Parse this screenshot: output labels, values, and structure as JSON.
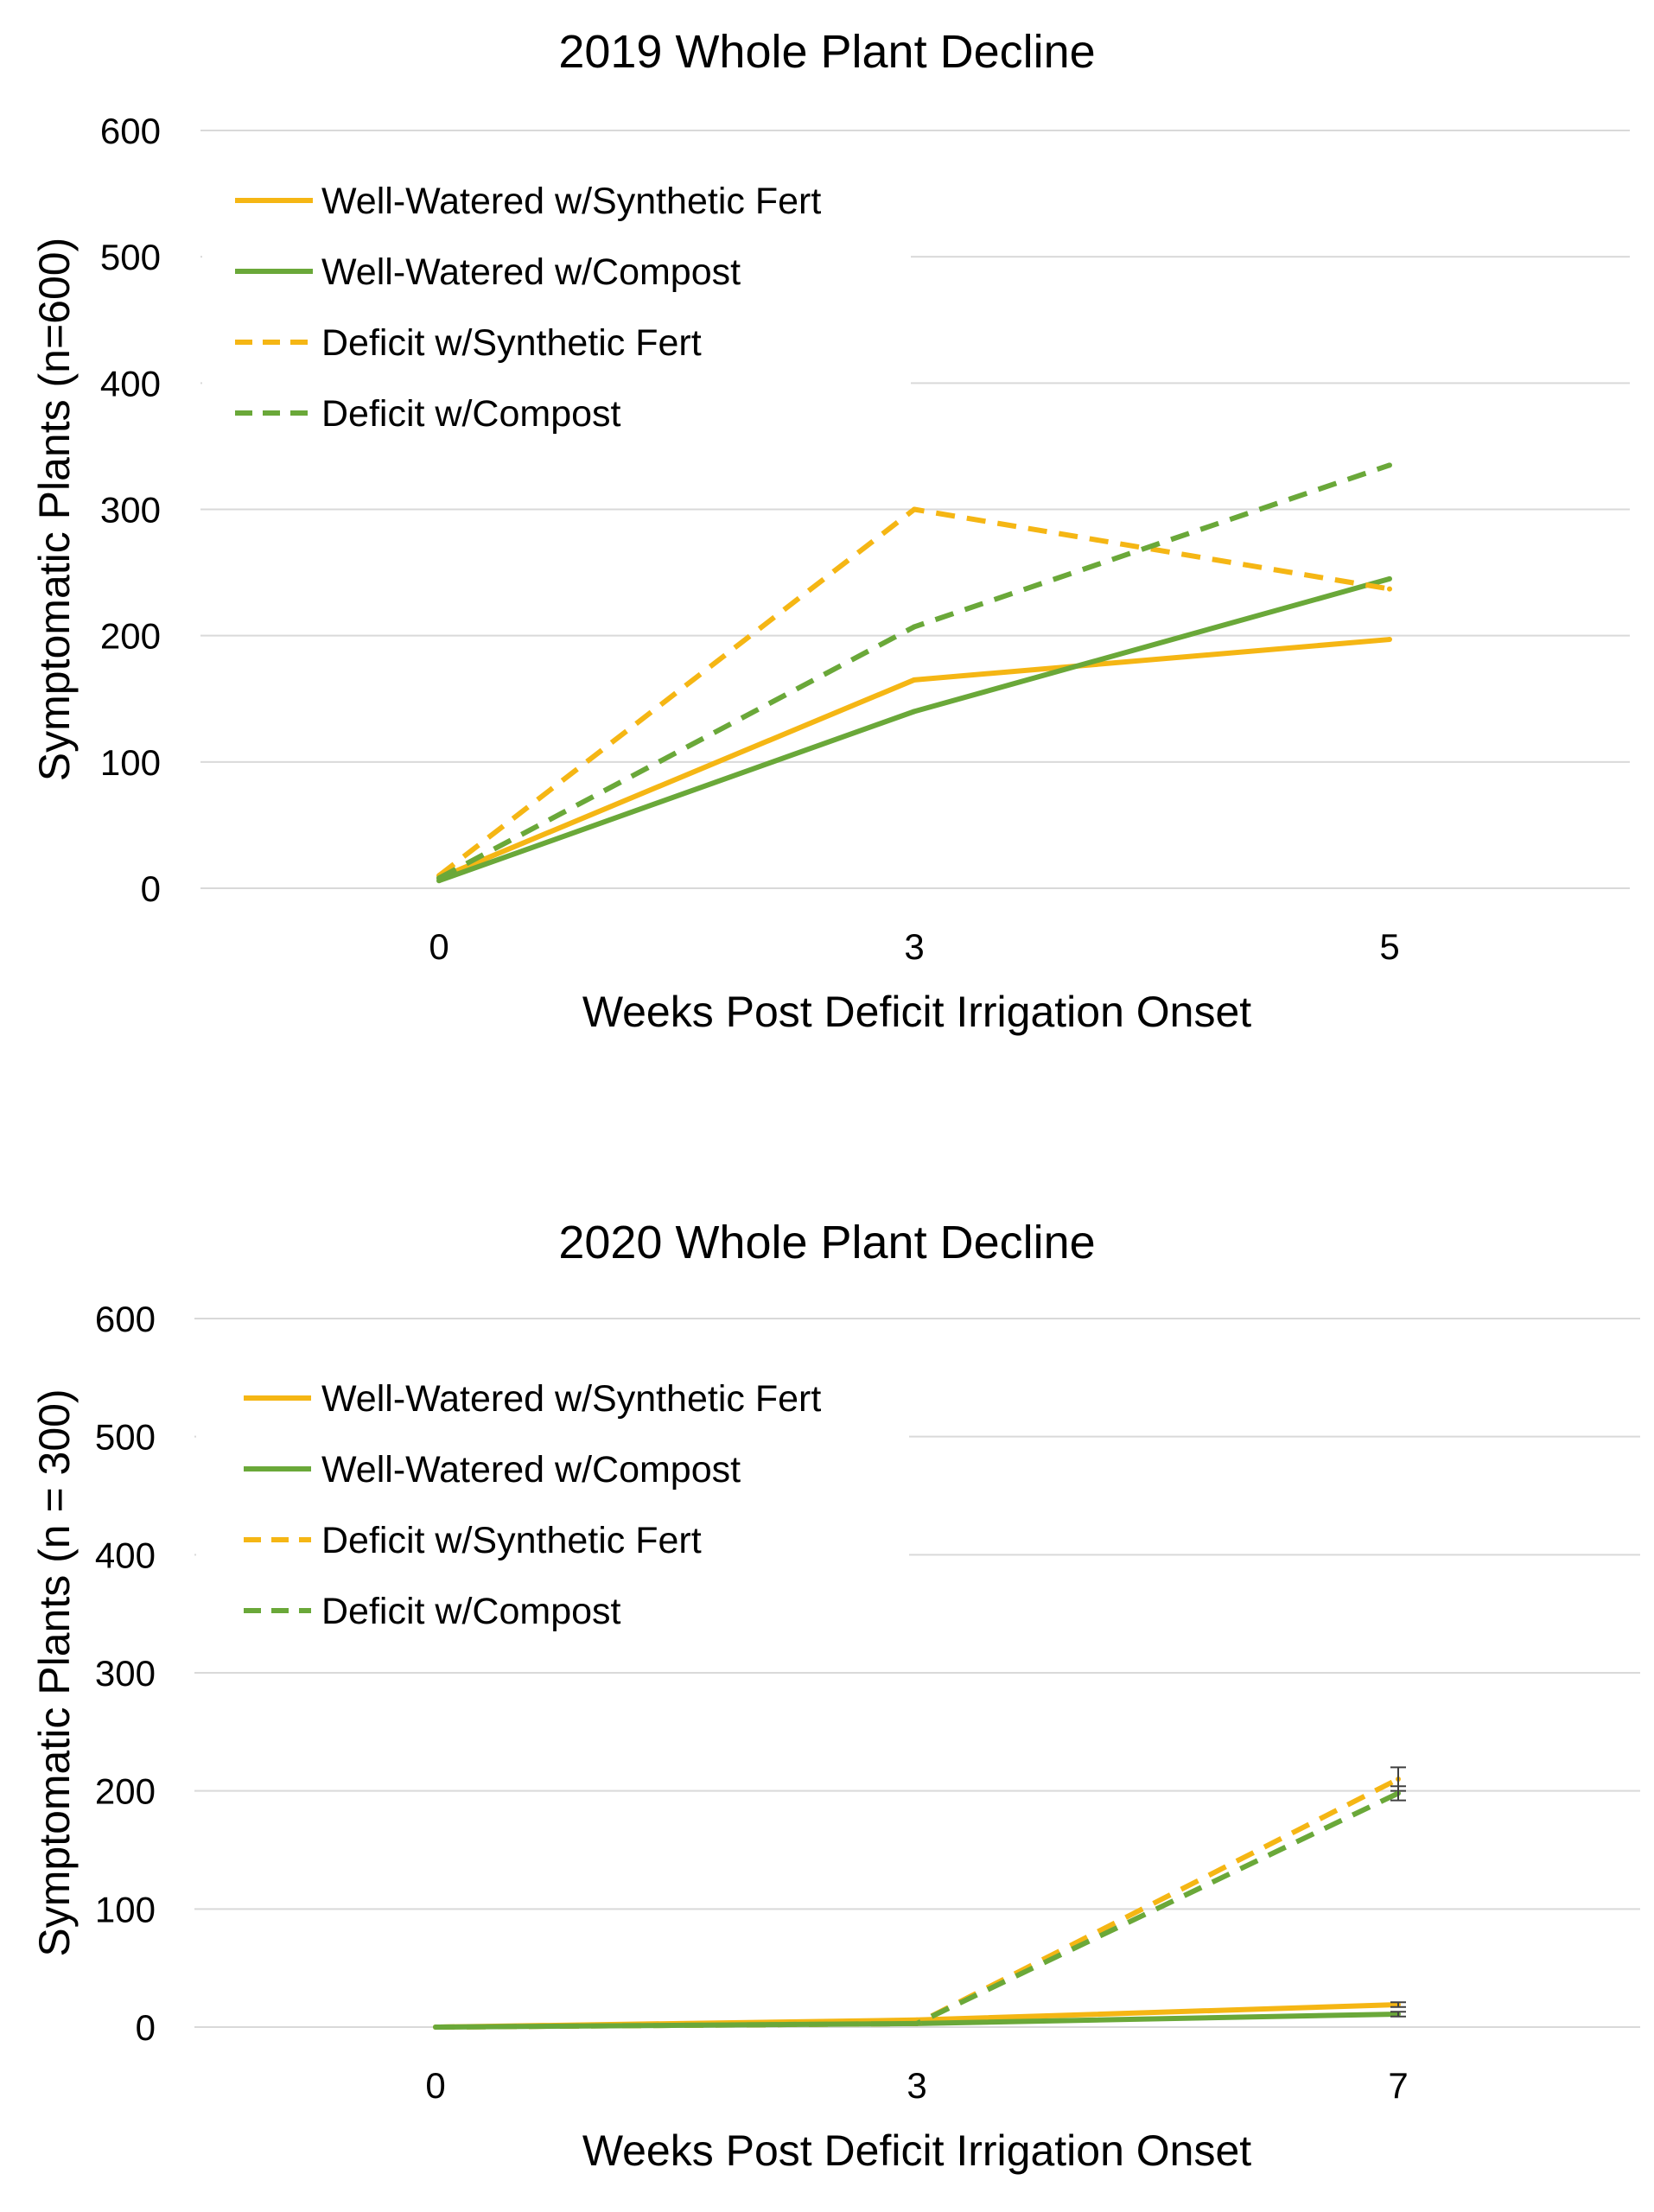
{
  "colors": {
    "synthetic": "#f5b614",
    "compost": "#6aa839",
    "grid": "#d9d9d9",
    "error_bar": "#404040"
  },
  "chart_data": [
    {
      "type": "line",
      "title": "2019 Whole Plant Decline",
      "xlabel": "Weeks Post Deficit Irrigation Onset",
      "ylabel": "Symptomatic Plants (n=600)",
      "categories": [
        "0",
        "3",
        "5"
      ],
      "ylim": [
        0,
        600
      ],
      "yticks": [
        "0",
        "100",
        "200",
        "300",
        "400",
        "500",
        "600"
      ],
      "grid": true,
      "legend_position": "top-left",
      "series": [
        {
          "name": "Well-Watered w/Synthetic Fert",
          "style": "solid",
          "color": "#f5b614",
          "values": [
            8,
            165,
            197
          ]
        },
        {
          "name": "Well-Watered w/Compost",
          "style": "solid",
          "color": "#6aa839",
          "values": [
            6,
            140,
            245
          ]
        },
        {
          "name": "Deficit w/Synthetic Fert",
          "style": "dashed",
          "color": "#f5b614",
          "values": [
            10,
            300,
            237
          ]
        },
        {
          "name": "Deficit w/Compost",
          "style": "dashed",
          "color": "#6aa839",
          "values": [
            8,
            207,
            335
          ]
        }
      ]
    },
    {
      "type": "line",
      "title": "2020 Whole Plant Decline",
      "xlabel": "Weeks Post Deficit Irrigation Onset",
      "ylabel": "Symptomatic Plants (n = 300)",
      "categories": [
        "0",
        "3",
        "7"
      ],
      "ylim": [
        0,
        600
      ],
      "yticks": [
        "0",
        "100",
        "200",
        "300",
        "400",
        "500",
        "600"
      ],
      "grid": true,
      "legend_position": "top-left",
      "series": [
        {
          "name": "Well-Watered w/Synthetic Fert",
          "style": "solid",
          "color": "#f5b614",
          "values": [
            0,
            6,
            19
          ],
          "error": [
            0,
            0,
            2
          ]
        },
        {
          "name": "Well-Watered w/Compost",
          "style": "solid",
          "color": "#6aa839",
          "values": [
            0,
            3,
            11
          ],
          "error": [
            0,
            0,
            2
          ]
        },
        {
          "name": "Deficit w/Synthetic Fert",
          "style": "dashed",
          "color": "#f5b614",
          "values": [
            0,
            3,
            210
          ],
          "error": [
            0,
            0,
            10
          ]
        },
        {
          "name": "Deficit w/Compost",
          "style": "dashed",
          "color": "#6aa839",
          "values": [
            0,
            3,
            198
          ],
          "error": [
            0,
            0,
            6
          ]
        }
      ]
    }
  ]
}
